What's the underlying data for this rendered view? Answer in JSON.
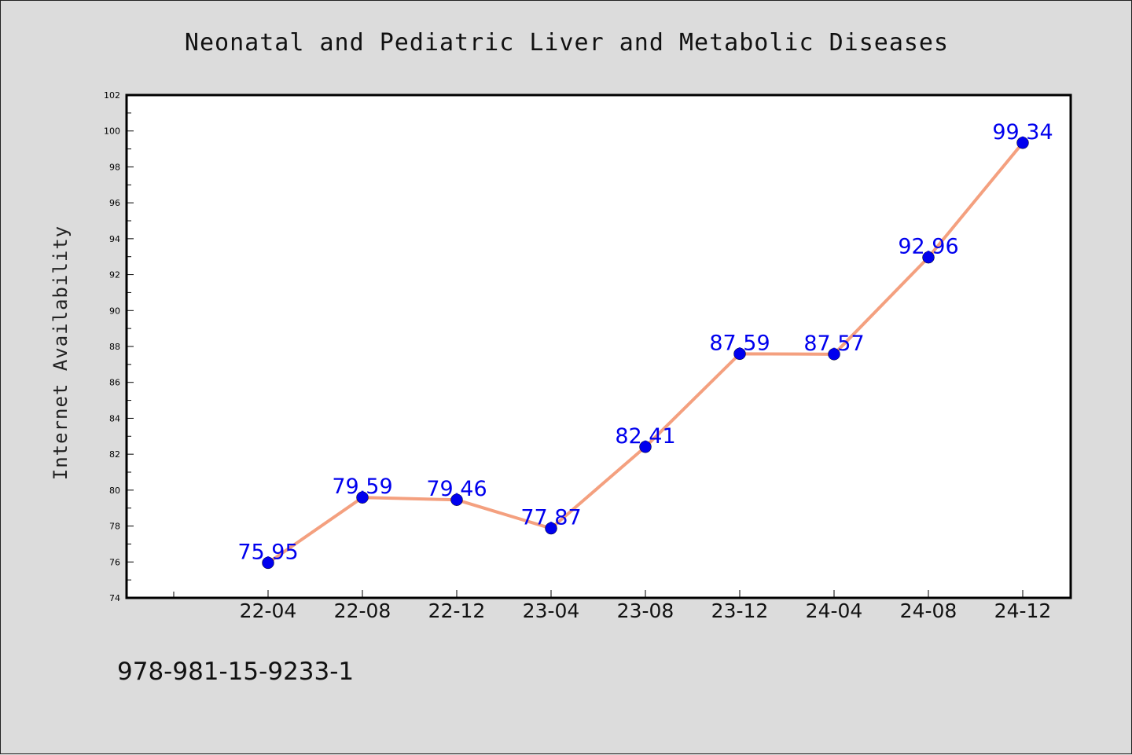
{
  "chart_data": {
    "type": "line",
    "title": "Neonatal and Pediatric Liver and Metabolic Diseases",
    "xlabel": "",
    "ylabel": "Internet Availability",
    "categories": [
      "22-04",
      "22-08",
      "22-12",
      "23-04",
      "23-08",
      "23-12",
      "24-04",
      "24-08",
      "24-12"
    ],
    "series": [
      {
        "values": [
          75.95,
          79.59,
          79.46,
          77.87,
          82.41,
          87.59,
          87.57,
          92.96,
          99.34
        ],
        "data_labels": [
          "75.95",
          "79.59",
          "79.46",
          "77.87",
          "82.41",
          "87.59",
          "87.57",
          "92.96",
          "99.34"
        ],
        "line_color": "#f4a07f",
        "marker_color": "#0000ee",
        "label_color": "#0000ee"
      }
    ],
    "ylim": [
      74,
      102
    ],
    "yticks": [
      "74",
      "76",
      "78",
      "80",
      "82",
      "84",
      "86",
      "88",
      "90",
      "92",
      "94",
      "96",
      "98",
      "100",
      "102"
    ],
    "grid": false,
    "legend": "none"
  },
  "footer_text": "978-981-15-9233-1",
  "colors": {
    "background": "#dcdcdc",
    "plot_background": "#ffffff"
  }
}
